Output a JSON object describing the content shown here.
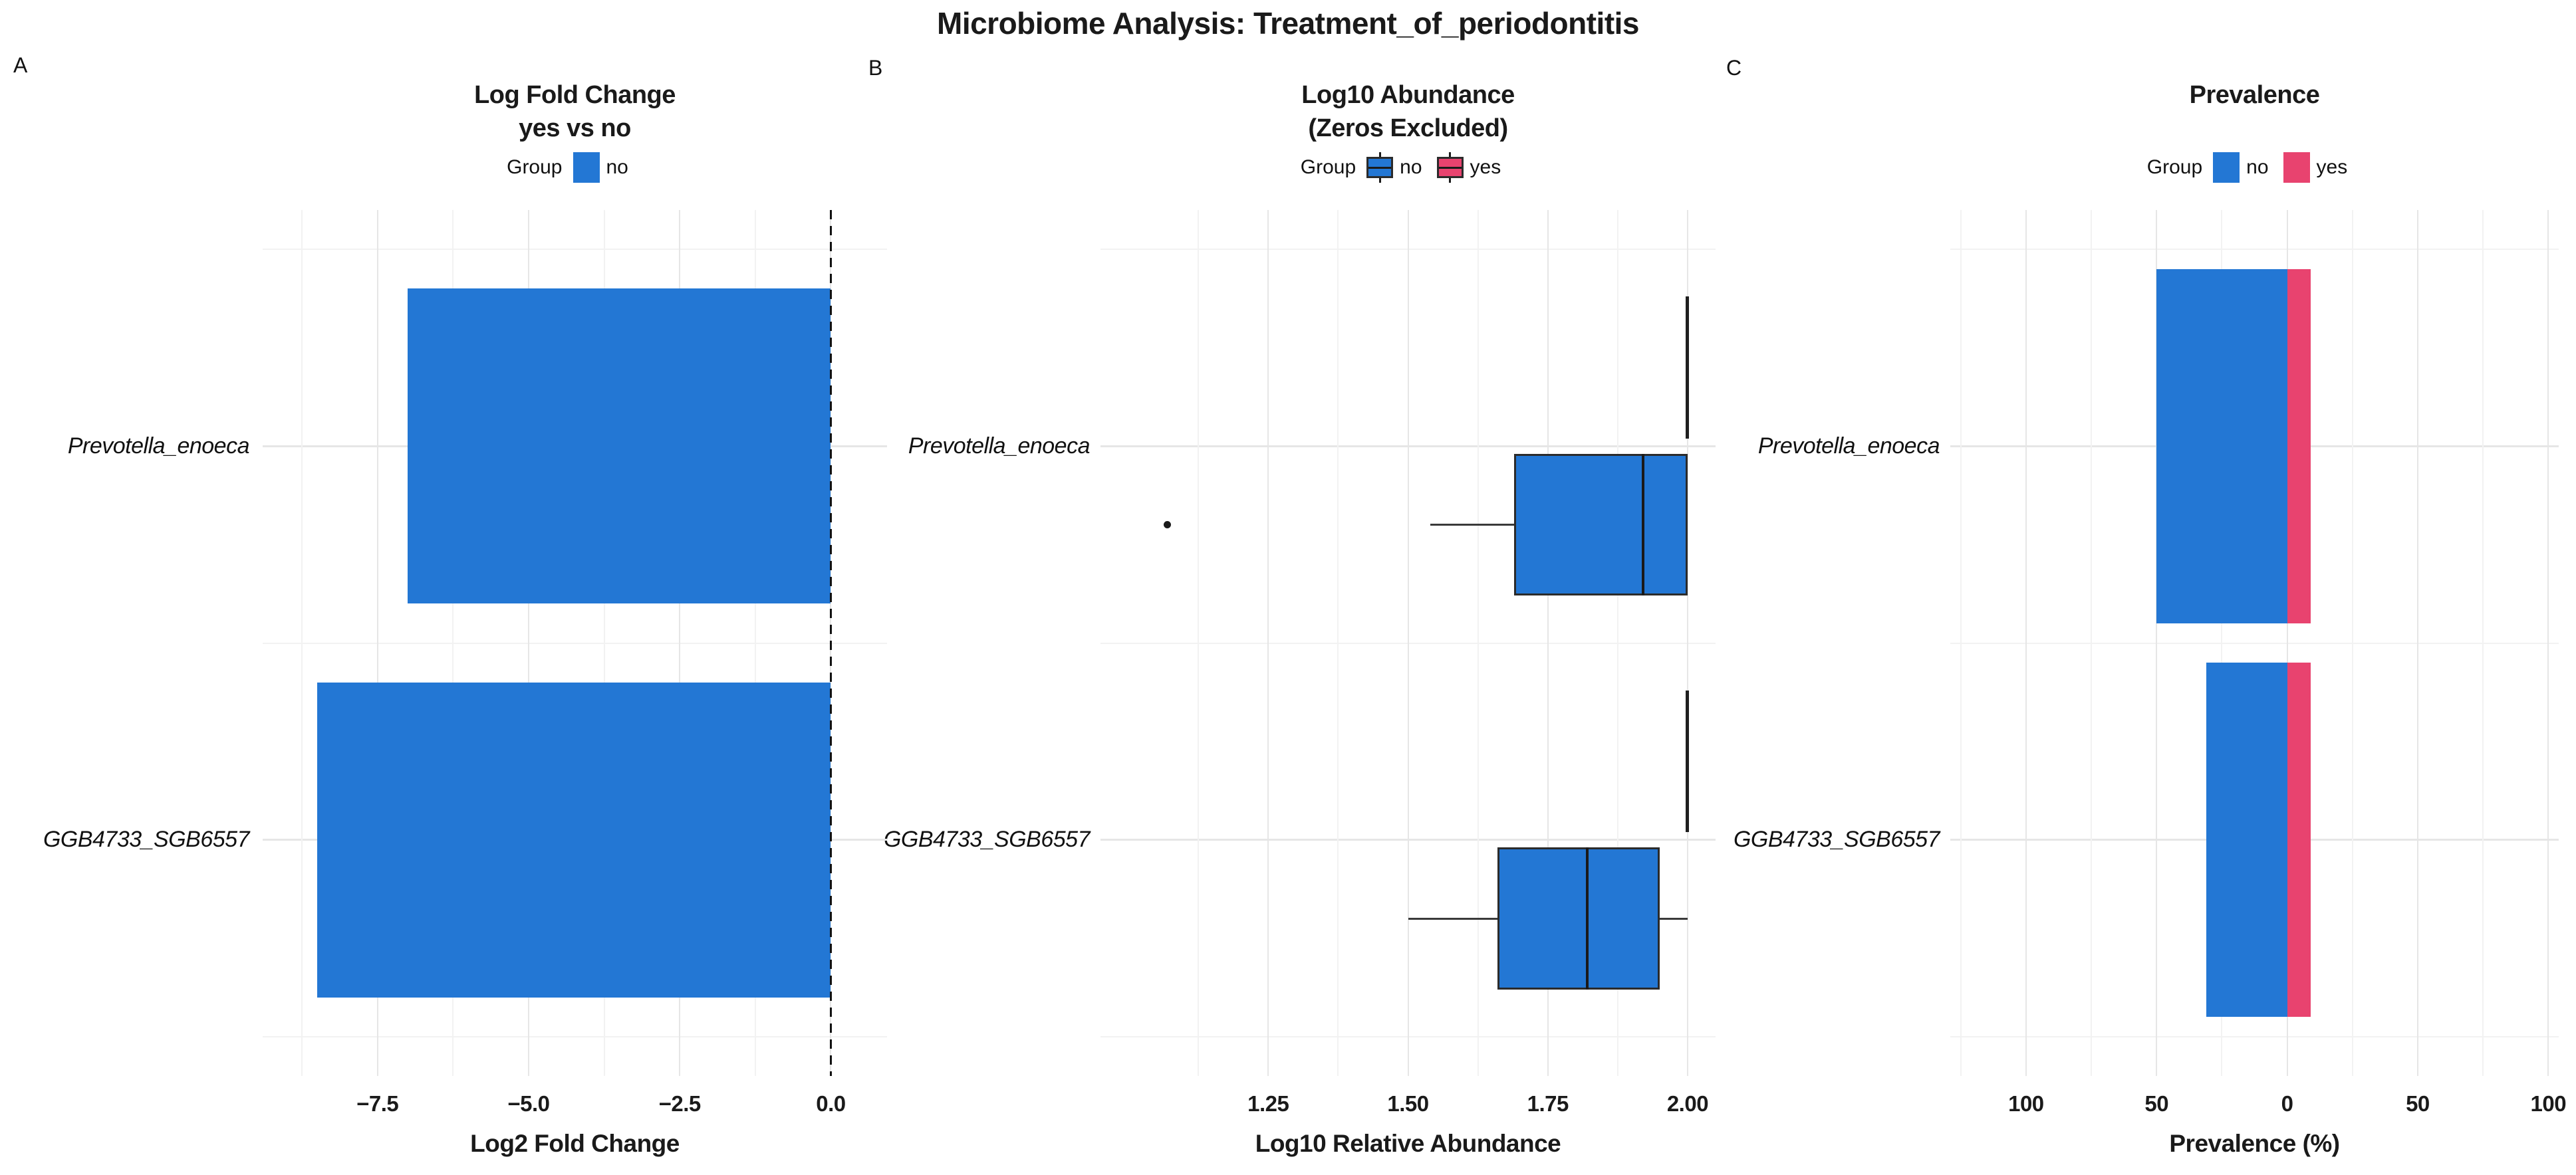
{
  "figure_title": "Microbiome Analysis: Treatment_of_periodontitis",
  "species": [
    "Prevotella_enoeca",
    "GGB4733_SGB6557"
  ],
  "colors": {
    "group_no": "#2377d4",
    "group_yes": "#e8436f",
    "box_border": "#2b2b2b",
    "whisker": "#3a3a3a",
    "median": "#1a1a1a",
    "grid_major": "#e6e6e6",
    "grid_minor": "#f2f2f2",
    "zero_line": "#111111",
    "outlier": "#1a1a1a",
    "text": "#1a1a1a"
  },
  "chart_data": [
    {
      "panel_label": "A",
      "type": "bar",
      "title_lines": [
        "Log Fold Change",
        "yes vs no"
      ],
      "legend": {
        "title": "Group",
        "items": [
          {
            "label": "no",
            "color": "#2377d4",
            "glyph": "square"
          }
        ]
      },
      "categories": [
        "Prevotella_enoeca",
        "GGB4733_SGB6557"
      ],
      "values": [
        -7.0,
        -8.5
      ],
      "orientation": "horizontal",
      "xlabel": "Log2 Fold Change",
      "x_ticks": [
        -7.5,
        -5.0,
        -2.5,
        0.0
      ],
      "x_tick_labels": [
        "−7.5",
        "−5.0",
        "−2.5",
        "0.0"
      ],
      "xlim": [
        -9.4,
        0.93
      ],
      "zero_reference_line": {
        "x": 0,
        "style": "dashed"
      },
      "grid": true,
      "legend_position": "top"
    },
    {
      "panel_label": "B",
      "type": "boxplot",
      "title_lines": [
        "Log10 Abundance",
        "(Zeros Excluded)"
      ],
      "legend": {
        "title": "Group",
        "items": [
          {
            "label": "no",
            "color": "#2377d4",
            "glyph": "boxplot"
          },
          {
            "label": "yes",
            "color": "#e8436f",
            "glyph": "boxplot"
          }
        ]
      },
      "categories": [
        "Prevotella_enoeca",
        "GGB4733_SGB6557"
      ],
      "xlabel": "Log10 Relative Abundance",
      "x_ticks": [
        1.25,
        1.5,
        1.75,
        2.0
      ],
      "x_tick_labels": [
        "1.25",
        "1.50",
        "1.75",
        "2.00"
      ],
      "xlim": [
        0.95,
        2.05
      ],
      "boxes": [
        {
          "category_index": 0,
          "group": "no",
          "whisker_low": 1.54,
          "q1": 1.69,
          "median": 1.92,
          "q3": 2.0,
          "whisker_high": 2.0,
          "outliers": [
            1.07
          ]
        },
        {
          "category_index": 0,
          "group": "yes",
          "whisker_low": 2.0,
          "q1": 2.0,
          "median": 2.0,
          "q3": 2.0,
          "whisker_high": 2.0,
          "outliers": []
        },
        {
          "category_index": 1,
          "group": "no",
          "whisker_low": 1.5,
          "q1": 1.66,
          "median": 1.82,
          "q3": 1.95,
          "whisker_high": 2.0,
          "outliers": []
        },
        {
          "category_index": 1,
          "group": "yes",
          "whisker_low": 2.0,
          "q1": 2.0,
          "median": 2.0,
          "q3": 2.0,
          "whisker_high": 2.0,
          "outliers": []
        }
      ],
      "grid": true,
      "legend_position": "top"
    },
    {
      "panel_label": "C",
      "type": "diverging_bar",
      "title_lines": [
        "Prevalence"
      ],
      "legend": {
        "title": "Group",
        "items": [
          {
            "label": "no",
            "color": "#2377d4",
            "glyph": "square"
          },
          {
            "label": "yes",
            "color": "#e8436f",
            "glyph": "square"
          }
        ]
      },
      "categories": [
        "Prevotella_enoeca",
        "GGB4733_SGB6557"
      ],
      "xlabel": "Prevalence (%)",
      "x_ticks": [
        -100,
        -50,
        0,
        50,
        100
      ],
      "x_tick_labels": [
        "100",
        "50",
        "0",
        "50",
        "100"
      ],
      "xlim": [
        -129,
        104
      ],
      "series": [
        {
          "name": "no",
          "direction": "left",
          "values": [
            50,
            31
          ]
        },
        {
          "name": "yes",
          "direction": "right",
          "values": [
            9,
            9
          ]
        }
      ],
      "grid": true,
      "legend_position": "top"
    }
  ]
}
